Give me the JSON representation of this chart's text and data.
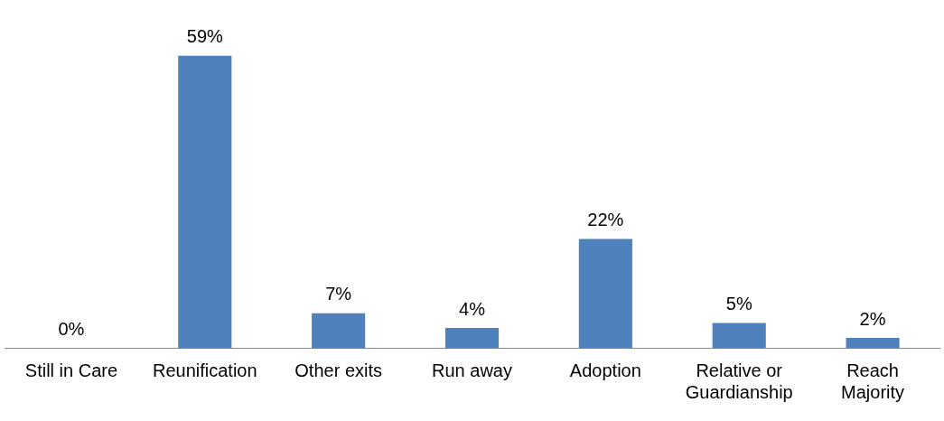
{
  "chart_data": {
    "type": "bar",
    "categories": [
      "Still in Care",
      "Reunification",
      "Other exits",
      "Run away",
      "Adoption",
      "Relative or Guardianship",
      "Reach Majority"
    ],
    "values": [
      0,
      59,
      7,
      4,
      22,
      5,
      2
    ],
    "color": "#4f81bd",
    "data_labels": true,
    "value_labels": [
      "0%",
      "59%",
      "7%",
      "4%",
      "22%",
      "5%",
      "2%"
    ],
    "grid": false,
    "legend": false
  }
}
